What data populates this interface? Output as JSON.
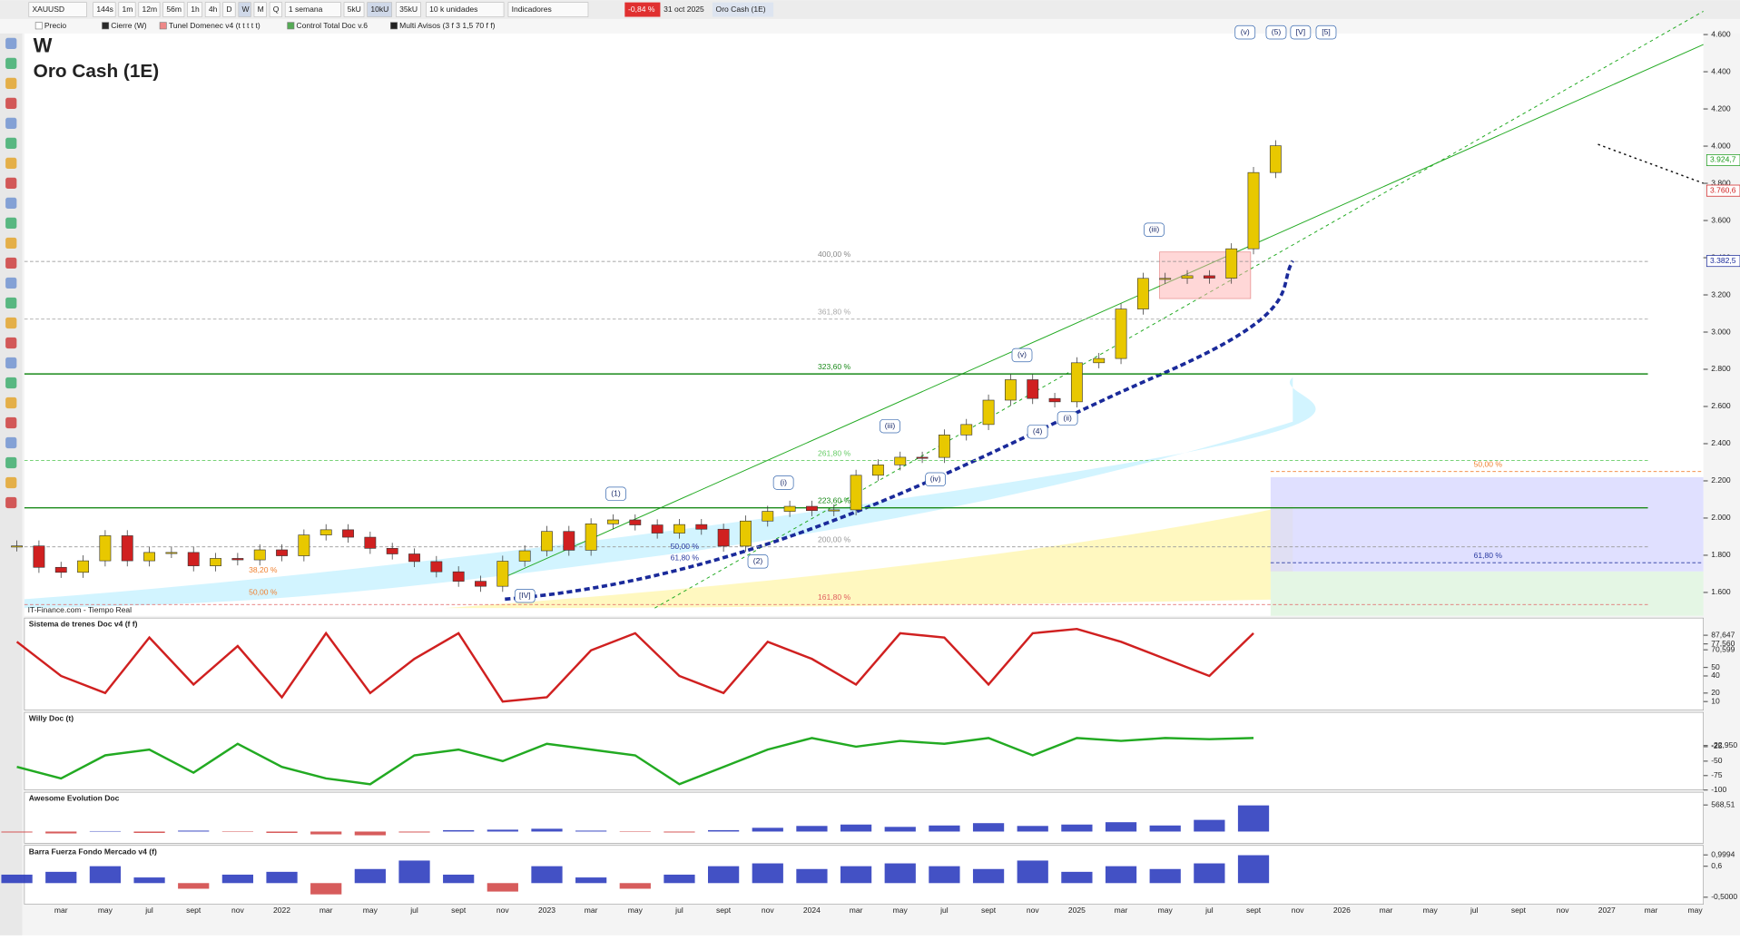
{
  "toolbar": {
    "items": [
      "XAUUSD",
      "144s",
      "1m",
      "12m",
      "56m",
      "1h",
      "4h",
      "D",
      "W",
      "M",
      "Q",
      "1 semana",
      "5kU",
      "10kU",
      "35kU",
      "10 k unidades",
      "Indicadores"
    ],
    "change": "-0,84 %",
    "date": "31 oct 2025",
    "instrument": "Oro Cash (1E)"
  },
  "legend": [
    "Precio",
    "Cierre (W)",
    "Tunel Domenec v4 (t t t t t)",
    "Control Total Doc v.6",
    "Multi Avisos (3 f 3 1,5 70 f f)"
  ],
  "title": "W",
  "subtitle": "Oro Cash (1E)",
  "source": "IT-Finance.com - Tiempo Real",
  "price": {
    "up_color": "#e8c800",
    "down_color": "#d02020",
    "values": [
      1850,
      1735,
      1708,
      1770,
      1905,
      1770,
      1815,
      1815,
      1743,
      1783,
      1775,
      1829,
      1797,
      1909,
      1937,
      1897,
      1837,
      1807,
      1766,
      1711,
      1660,
      1633,
      1768,
      1824,
      1928,
      1827,
      1969,
      1990,
      1963,
      1919,
      1965,
      1940,
      1849,
      1984,
      2036,
      2063,
      2040,
      2044,
      2230,
      2286,
      2327,
      2326,
      2447,
      2503,
      2634,
      2744,
      2643,
      2625,
      2835,
      2858,
      3124,
      3289,
      3289,
      3303,
      3290,
      3448,
      3858,
      4002
    ],
    "ylim": [
      1530,
      4620
    ],
    "yticks": [
      {
        "value": 4600,
        "label": "4.600"
      },
      {
        "value": 4400,
        "label": "4.400"
      },
      {
        "value": 4200,
        "label": "4.200"
      },
      {
        "value": 4000,
        "label": "4.000"
      },
      {
        "value": 3800,
        "label": "3.800"
      },
      {
        "value": 3600,
        "label": "3.600"
      },
      {
        "value": 3400,
        "label": "3.400"
      },
      {
        "value": 3200,
        "label": "3.200"
      },
      {
        "value": 3000,
        "label": "3.000"
      },
      {
        "value": 2800,
        "label": "2.800"
      },
      {
        "value": 2600,
        "label": "2.600"
      },
      {
        "value": 2400,
        "label": "2.400"
      },
      {
        "value": 2200,
        "label": "2.200"
      },
      {
        "value": 2000,
        "label": "2.000"
      },
      {
        "value": 1800,
        "label": "1.800"
      },
      {
        "value": 1600,
        "label": "1.600"
      }
    ],
    "markers": [
      {
        "value": 3924.7,
        "label": "3.924,7",
        "color": "#1a9a1a"
      },
      {
        "value": 3760.6,
        "label": "3.760,6",
        "color": "#d02020"
      },
      {
        "value": 3382.5,
        "label": "3.382,5",
        "color": "#1a2a9a"
      }
    ]
  },
  "levels": [
    {
      "label": "400,00 %",
      "value": 3380,
      "color": "#888888"
    },
    {
      "label": "361,80 %",
      "value": 3070,
      "color": "#aaaaaa"
    },
    {
      "label": "323,60 %",
      "value": 2775,
      "color": "#1a8a1a"
    },
    {
      "label": "261,80 %",
      "value": 2310,
      "color": "#66cc66"
    },
    {
      "label": "223,60 %",
      "value": 2055,
      "color": "#1a8a1a"
    },
    {
      "label": "200,00 %",
      "value": 1845,
      "color": "#999999"
    },
    {
      "label": "161,80 %",
      "value": 1535,
      "color": "#e06060"
    },
    {
      "label": "50,00 %",
      "value": 2250,
      "color": "#f08030"
    },
    {
      "label": "61,80 %",
      "value": 1760,
      "color": "#2a3aa0"
    }
  ],
  "waves": [
    "(v)",
    "(5)",
    "[V]",
    "[5]",
    "(iii)",
    "(1)",
    "(i)",
    "(iii)",
    "(v)",
    "(iv)",
    "(2)",
    "[IV]",
    "(4)",
    "(ii)",
    "50,00 %",
    "61,80 %",
    "38,20 %",
    "50,00 %"
  ],
  "xaxis": [
    "mar",
    "may",
    "jul",
    "sept",
    "nov",
    "2022",
    "mar",
    "may",
    "jul",
    "sept",
    "nov",
    "2023",
    "mar",
    "may",
    "jul",
    "sept",
    "nov",
    "2024",
    "mar",
    "may",
    "jul",
    "sept",
    "nov",
    "2025",
    "mar",
    "may",
    "jul",
    "sept",
    "nov",
    "2026",
    "mar",
    "may",
    "jul",
    "sept",
    "nov",
    "2027",
    "mar",
    "may"
  ],
  "panels": [
    {
      "title": "Sistema de trenes Doc v4 (f f)",
      "type": "line",
      "color": "#d02020",
      "ylim": [
        0,
        100
      ],
      "yticks": [
        {
          "value": 87.647,
          "label": "87,647"
        },
        {
          "value": 77.56,
          "label": "77,560"
        },
        {
          "value": 70.599,
          "label": "70,599"
        },
        50,
        40,
        20,
        10
      ],
      "values": [
        80,
        40,
        20,
        85,
        30,
        75,
        15,
        90,
        20,
        60,
        90,
        10,
        15,
        70,
        90,
        40,
        20,
        80,
        60,
        30,
        90,
        85,
        30,
        90,
        95,
        80,
        60,
        40,
        90
      ]
    },
    {
      "title": "Willy Doc (t)",
      "type": "line",
      "color": "#22aa22",
      "ylim": [
        -100,
        23
      ],
      "yticks": [
        {
          "value": -22.95,
          "label": "-22,950"
        },
        -25,
        -50,
        -75,
        -100
      ],
      "values": [
        -60,
        -80,
        -40,
        -30,
        -70,
        -20,
        -60,
        -80,
        -90,
        -40,
        -30,
        -50,
        -20,
        -30,
        -40,
        -90,
        -60,
        -30,
        -10,
        -25,
        -15,
        -20,
        -10,
        -40,
        -10,
        -15,
        -10,
        -12,
        -10
      ]
    },
    {
      "title": "Awesome Evolution Doc",
      "type": "bar",
      "color": "#2233bb",
      "ylim": [
        -250,
        700
      ],
      "yticks": [
        {
          "value": 568.51,
          "label": "568,51"
        }
      ],
      "values": [
        -20,
        -40,
        10,
        -30,
        20,
        -10,
        -30,
        -60,
        -80,
        -20,
        30,
        40,
        60,
        20,
        -10,
        -20,
        30,
        80,
        120,
        150,
        100,
        130,
        180,
        120,
        150,
        200,
        130,
        250,
        560
      ]
    },
    {
      "title": "Barra Fuerza Fondo Mercado v4 (f)",
      "type": "bar",
      "color": "#2233bb",
      "ylim": [
        -0.75,
        1.1
      ],
      "yticks": [
        {
          "value": 0.9994,
          "label": "0,9994"
        },
        {
          "value": 0.6,
          "label": "0,6"
        },
        {
          "value": -0.5,
          "label": "-0,5000"
        }
      ],
      "values": [
        0.3,
        0.4,
        0.6,
        0.2,
        -0.2,
        0.3,
        0.4,
        -0.4,
        0.5,
        0.8,
        0.3,
        -0.3,
        0.6,
        0.2,
        -0.2,
        0.3,
        0.6,
        0.7,
        0.5,
        0.6,
        0.7,
        0.6,
        0.5,
        0.8,
        0.4,
        0.6,
        0.5,
        0.7,
        0.99
      ]
    }
  ]
}
